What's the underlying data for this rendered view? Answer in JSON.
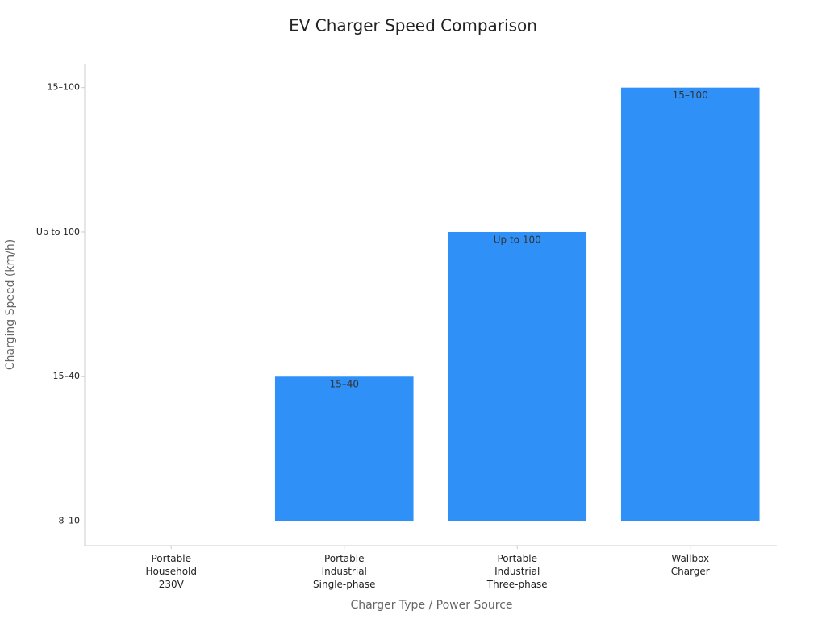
{
  "chart_data": {
    "type": "bar",
    "title": "EV Charger Speed Comparison",
    "x_label": "Charger Type / Power Source",
    "y_label": "Charging Speed (km/h)",
    "categories": [
      "Portable Household 230V",
      "Portable Industrial Single-phase",
      "Portable Industrial Three-phase",
      "Wallbox Charger"
    ],
    "values": [
      0,
      1,
      2,
      3
    ],
    "value_labels": [
      null,
      "15–40",
      "Up to 100",
      "15–100"
    ],
    "color": "#2f91f8",
    "ylim": [
      -0.17,
      3.16
    ],
    "yticks": [
      {
        "value": 0,
        "label": "8–10"
      },
      {
        "value": 1,
        "label": "15–40"
      },
      {
        "value": 2,
        "label": "Up to 100"
      },
      {
        "value": 3,
        "label": "15–100"
      }
    ],
    "grid": false
  }
}
